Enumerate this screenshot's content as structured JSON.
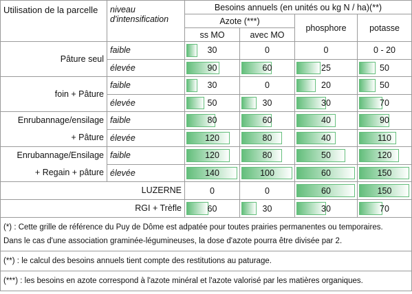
{
  "header": {
    "usage": "Utilisation de la parcelle",
    "level": "niveau d'intensification",
    "group": "Besoins annuels (en unités ou kg N / ha)(**)",
    "azote": "Azote (***)",
    "ss_mo": "ss MO",
    "avec_mo": "avec MO",
    "phosphore": "phosphore",
    "potasse": "potasse"
  },
  "groups": [
    {
      "label": [
        "Pâture seul"
      ],
      "rows": [
        {
          "level": "faible",
          "values": [
            30,
            0,
            0,
            "0 - 20"
          ]
        },
        {
          "level": "élevée",
          "values": [
            90,
            60,
            25,
            50
          ]
        }
      ]
    },
    {
      "label": [
        "foin + Pâture"
      ],
      "rows": [
        {
          "level": "faible",
          "values": [
            30,
            0,
            20,
            50
          ]
        },
        {
          "level": "élevée",
          "values": [
            50,
            30,
            30,
            70
          ]
        }
      ]
    },
    {
      "label": [
        "Enrubannage/ensilage",
        "+ Pâture"
      ],
      "rows": [
        {
          "level": "faible",
          "values": [
            80,
            60,
            40,
            90
          ]
        },
        {
          "level": "élevée",
          "values": [
            120,
            80,
            40,
            110
          ]
        }
      ]
    },
    {
      "label": [
        "Enrubannage/Ensilage",
        "+ Regain + pâture"
      ],
      "rows": [
        {
          "level": "faible",
          "values": [
            120,
            80,
            50,
            120
          ]
        },
        {
          "level": "élevée",
          "values": [
            140,
            100,
            60,
            150
          ]
        }
      ]
    },
    {
      "label": [
        "LUZERNE"
      ],
      "rows": [
        {
          "values": [
            0,
            0,
            60,
            150
          ]
        }
      ]
    },
    {
      "label": [
        "RGI + Trèfle"
      ],
      "rows": [
        {
          "values": [
            60,
            30,
            30,
            70
          ]
        }
      ]
    }
  ],
  "notes": [
    [
      "(*) : Cette grille de référence  du Puy de Dôme est adpatée pour toutes prairies permanentes ou temporaires.",
      "Dans le cas d'une association graminée-légumineuses, la dose d'azote pourra être divisée par 2."
    ],
    [
      "(**) : le calcul des besoins annuels tient compte des restitutions au paturage."
    ],
    [
      "(***) : les besoins en azote correspond à l'azote minéral et l'azote valorisé par les matières organiques."
    ]
  ]
}
